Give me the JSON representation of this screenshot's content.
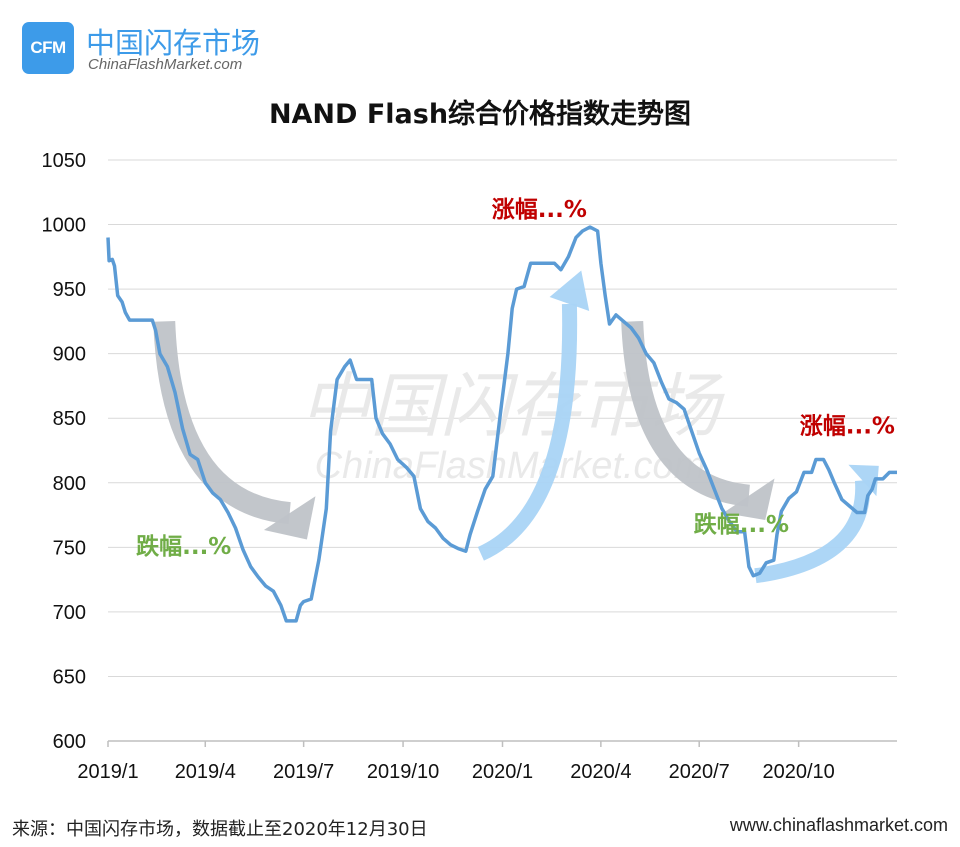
{
  "header": {
    "logo_text": "CFM",
    "brand_cn": "中国闪存市场",
    "brand_en": "ChinaFlashMarket.com"
  },
  "watermark": {
    "cn": "中国闪存市场",
    "en": "ChinaFlashMarket.com"
  },
  "footer": {
    "source": "来源：中国闪存市场，数据截止至2020年12月30日",
    "website": "www.chinaflashmarket.com"
  },
  "colors": {
    "line": "#5b9bd5",
    "brand": "#3d9be9",
    "down_arrow": "#bfc3c8",
    "up_arrow": "#a9d4f5",
    "up_text": "#c00000",
    "down_text": "#70ad47"
  },
  "chart_data": {
    "type": "line",
    "title": "NAND Flash综合价格指数走势图",
    "xlabel": "",
    "ylabel": "",
    "ylim": [
      600,
      1050
    ],
    "yticks": [
      600,
      650,
      700,
      750,
      800,
      850,
      900,
      950,
      1000,
      1050
    ],
    "xlim": [
      "2019-01-01",
      "2020-12-31"
    ],
    "xticks": [
      {
        "date": "2019-01-01",
        "label": "2019/1"
      },
      {
        "date": "2019-04-01",
        "label": "2019/4"
      },
      {
        "date": "2019-07-01",
        "label": "2019/7"
      },
      {
        "date": "2019-10-01",
        "label": "2019/10"
      },
      {
        "date": "2020-01-01",
        "label": "2020/1"
      },
      {
        "date": "2020-04-01",
        "label": "2020/4"
      },
      {
        "date": "2020-07-01",
        "label": "2020/7"
      },
      {
        "date": "2020-10-01",
        "label": "2020/10"
      }
    ],
    "grid": true,
    "series": [
      {
        "points": [
          [
            "2019-01-01",
            990
          ],
          [
            "2019-01-02",
            972
          ],
          [
            "2019-01-05",
            973
          ],
          [
            "2019-01-07",
            968
          ],
          [
            "2019-01-10",
            945
          ],
          [
            "2019-01-14",
            940
          ],
          [
            "2019-01-17",
            932
          ],
          [
            "2019-01-21",
            926
          ],
          [
            "2019-01-28",
            926
          ],
          [
            "2019-02-11",
            926
          ],
          [
            "2019-02-14",
            918
          ],
          [
            "2019-02-18",
            900
          ],
          [
            "2019-02-25",
            890
          ],
          [
            "2019-03-04",
            870
          ],
          [
            "2019-03-11",
            842
          ],
          [
            "2019-03-18",
            822
          ],
          [
            "2019-03-25",
            818
          ],
          [
            "2019-04-01",
            800
          ],
          [
            "2019-04-08",
            792
          ],
          [
            "2019-04-15",
            787
          ],
          [
            "2019-04-22",
            777
          ],
          [
            "2019-04-29",
            765
          ],
          [
            "2019-05-06",
            748
          ],
          [
            "2019-05-13",
            735
          ],
          [
            "2019-05-20",
            727
          ],
          [
            "2019-05-27",
            720
          ],
          [
            "2019-06-03",
            716
          ],
          [
            "2019-06-10",
            705
          ],
          [
            "2019-06-15",
            693
          ],
          [
            "2019-06-24",
            693
          ],
          [
            "2019-06-28",
            705
          ],
          [
            "2019-07-01",
            708
          ],
          [
            "2019-07-08",
            710
          ],
          [
            "2019-07-15",
            740
          ],
          [
            "2019-07-22",
            780
          ],
          [
            "2019-07-26",
            840
          ],
          [
            "2019-08-01",
            880
          ],
          [
            "2019-08-08",
            890
          ],
          [
            "2019-08-13",
            895
          ],
          [
            "2019-08-19",
            880
          ],
          [
            "2019-08-26",
            880
          ],
          [
            "2019-09-02",
            880
          ],
          [
            "2019-09-06",
            850
          ],
          [
            "2019-09-12",
            838
          ],
          [
            "2019-09-19",
            830
          ],
          [
            "2019-09-26",
            818
          ],
          [
            "2019-10-04",
            812
          ],
          [
            "2019-10-11",
            805
          ],
          [
            "2019-10-17",
            780
          ],
          [
            "2019-10-24",
            770
          ],
          [
            "2019-10-31",
            765
          ],
          [
            "2019-11-07",
            757
          ],
          [
            "2019-11-14",
            752
          ],
          [
            "2019-11-21",
            749
          ],
          [
            "2019-11-28",
            747
          ],
          [
            "2019-12-02",
            760
          ],
          [
            "2019-12-09",
            778
          ],
          [
            "2019-12-16",
            795
          ],
          [
            "2019-12-23",
            805
          ],
          [
            "2019-12-31",
            860
          ],
          [
            "2020-01-06",
            900
          ],
          [
            "2020-01-10",
            935
          ],
          [
            "2020-01-14",
            950
          ],
          [
            "2020-01-21",
            952
          ],
          [
            "2020-01-27",
            970
          ],
          [
            "2020-02-10",
            970
          ],
          [
            "2020-02-18",
            970
          ],
          [
            "2020-02-24",
            965
          ],
          [
            "2020-03-02",
            975
          ],
          [
            "2020-03-09",
            990
          ],
          [
            "2020-03-15",
            995
          ],
          [
            "2020-03-22",
            998
          ],
          [
            "2020-03-29",
            995
          ],
          [
            "2020-04-01",
            970
          ],
          [
            "2020-04-05",
            945
          ],
          [
            "2020-04-09",
            923
          ],
          [
            "2020-04-15",
            930
          ],
          [
            "2020-04-22",
            925
          ],
          [
            "2020-04-29",
            920
          ],
          [
            "2020-05-06",
            912
          ],
          [
            "2020-05-13",
            900
          ],
          [
            "2020-05-20",
            893
          ],
          [
            "2020-05-27",
            878
          ],
          [
            "2020-06-03",
            865
          ],
          [
            "2020-06-10",
            862
          ],
          [
            "2020-06-17",
            857
          ],
          [
            "2020-06-24",
            840
          ],
          [
            "2020-07-01",
            823
          ],
          [
            "2020-07-08",
            810
          ],
          [
            "2020-07-15",
            795
          ],
          [
            "2020-07-22",
            780
          ],
          [
            "2020-07-29",
            770
          ],
          [
            "2020-08-05",
            762
          ],
          [
            "2020-08-12",
            762
          ],
          [
            "2020-08-16",
            735
          ],
          [
            "2020-08-20",
            728
          ],
          [
            "2020-08-26",
            730
          ],
          [
            "2020-09-01",
            738
          ],
          [
            "2020-09-08",
            740
          ],
          [
            "2020-09-11",
            760
          ],
          [
            "2020-09-15",
            778
          ],
          [
            "2020-09-22",
            788
          ],
          [
            "2020-09-29",
            793
          ],
          [
            "2020-10-06",
            808
          ],
          [
            "2020-10-13",
            808
          ],
          [
            "2020-10-17",
            818
          ],
          [
            "2020-10-24",
            818
          ],
          [
            "2020-10-29",
            810
          ],
          [
            "2020-11-03",
            800
          ],
          [
            "2020-11-10",
            787
          ],
          [
            "2020-11-17",
            782
          ],
          [
            "2020-11-24",
            777
          ],
          [
            "2020-12-01",
            777
          ],
          [
            "2020-12-04",
            790
          ],
          [
            "2020-12-08",
            795
          ],
          [
            "2020-12-11",
            803
          ],
          [
            "2020-12-18",
            803
          ],
          [
            "2020-12-24",
            808
          ],
          [
            "2020-12-31",
            808
          ]
        ]
      }
    ],
    "annotations": [
      {
        "text": "跌幅...%",
        "kind": "down",
        "x": "2019-01-27",
        "y": 745
      },
      {
        "text": "涨幅...%",
        "kind": "up",
        "x": "2019-12-22",
        "y": 1006
      },
      {
        "text": "跌幅...%",
        "kind": "down",
        "x": "2020-06-26",
        "y": 762
      },
      {
        "text": "涨幅...%",
        "kind": "up",
        "x": "2020-10-02",
        "y": 838
      }
    ],
    "trend_arrows": [
      {
        "kind": "down",
        "from": [
          "2019-02-22",
          925
        ],
        "to": [
          "2019-07-01",
          760
        ]
      },
      {
        "kind": "up",
        "from": [
          "2019-12-12",
          745
        ],
        "to": [
          "2020-03-12",
          960
        ]
      },
      {
        "kind": "down",
        "from": [
          "2020-04-30",
          925
        ],
        "to": [
          "2020-08-28",
          775
        ]
      },
      {
        "kind": "up",
        "from": [
          "2020-08-22",
          728
        ],
        "to": [
          "2020-12-10",
          810
        ]
      }
    ]
  }
}
